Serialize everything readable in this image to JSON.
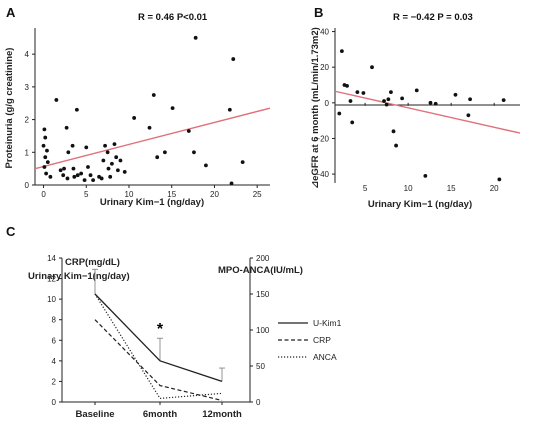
{
  "chart_data": [
    {
      "panel": "A",
      "type": "scatter",
      "stat": "R = 0.46  P<0.01",
      "xlabel": "Urinary Kim−1  (ng/day)",
      "ylabel": "Proteinuria (g/g creatinine)",
      "xlim": [
        -1,
        26.5
      ],
      "ylim": [
        0,
        4.8
      ],
      "xticks": [
        "0",
        "5",
        "10",
        "15",
        "20",
        "25"
      ],
      "yticks": [
        "0",
        "1",
        "2",
        "3",
        "4"
      ],
      "fit_line": {
        "x": [
          -1,
          26.5
        ],
        "y": [
          0.5,
          2.35
        ],
        "color": "#e0707a"
      },
      "points": [
        [
          0.1,
          1.7
        ],
        [
          0.2,
          1.45
        ],
        [
          0.0,
          1.2
        ],
        [
          0.4,
          1.05
        ],
        [
          0.2,
          0.85
        ],
        [
          0.5,
          0.7
        ],
        [
          0.1,
          0.55
        ],
        [
          0.3,
          0.35
        ],
        [
          0.8,
          0.25
        ],
        [
          1.5,
          2.6
        ],
        [
          2.0,
          0.45
        ],
        [
          2.4,
          0.5
        ],
        [
          2.7,
          1.75
        ],
        [
          2.9,
          1.0
        ],
        [
          2.3,
          0.3
        ],
        [
          2.8,
          0.2
        ],
        [
          3.4,
          1.2
        ],
        [
          3.5,
          0.5
        ],
        [
          3.6,
          0.25
        ],
        [
          3.9,
          2.3
        ],
        [
          4.0,
          0.3
        ],
        [
          4.4,
          0.35
        ],
        [
          4.8,
          0.15
        ],
        [
          5.0,
          1.15
        ],
        [
          5.2,
          0.55
        ],
        [
          5.5,
          0.3
        ],
        [
          5.8,
          0.15
        ],
        [
          6.5,
          0.25
        ],
        [
          6.8,
          0.2
        ],
        [
          7.0,
          0.75
        ],
        [
          7.2,
          1.2
        ],
        [
          7.5,
          1.0
        ],
        [
          7.6,
          0.5
        ],
        [
          7.8,
          0.25
        ],
        [
          8.0,
          0.65
        ],
        [
          8.3,
          1.25
        ],
        [
          8.5,
          0.85
        ],
        [
          8.7,
          0.45
        ],
        [
          9.0,
          0.75
        ],
        [
          9.5,
          0.4
        ],
        [
          10.6,
          2.05
        ],
        [
          12.4,
          1.75
        ],
        [
          12.9,
          2.75
        ],
        [
          13.3,
          0.85
        ],
        [
          14.2,
          1.0
        ],
        [
          15.1,
          2.35
        ],
        [
          17.0,
          1.65
        ],
        [
          17.6,
          1.0
        ],
        [
          17.8,
          4.5
        ],
        [
          19.0,
          0.6
        ],
        [
          21.8,
          2.3
        ],
        [
          22.2,
          3.85
        ],
        [
          23.3,
          0.7
        ],
        [
          22.0,
          0.05
        ]
      ]
    },
    {
      "panel": "B",
      "type": "scatter",
      "stat": "R = −0.42  P = 0.03",
      "xlabel": "Urinary Kim−1  (ng/day)",
      "ylabel": "⊿eGFR at 6 month  (mL/min/1.73m2)",
      "xlim": [
        1.5,
        23
      ],
      "ylim": [
        -45,
        42
      ],
      "xticks": [
        "5",
        "10",
        "15",
        "20"
      ],
      "yticks": [
        "40",
        "20",
        "0",
        "−20",
        "−40"
      ],
      "fit_line": {
        "x": [
          1.5,
          23
        ],
        "y": [
          6.5,
          -17
        ],
        "color": "#e0707a"
      },
      "points": [
        [
          2.3,
          29
        ],
        [
          2.6,
          10
        ],
        [
          2.9,
          9.5
        ],
        [
          3.3,
          1
        ],
        [
          3.5,
          -11
        ],
        [
          4.1,
          6
        ],
        [
          4.8,
          5.5
        ],
        [
          2.0,
          -6
        ],
        [
          5.8,
          20
        ],
        [
          7.2,
          1
        ],
        [
          7.5,
          -1
        ],
        [
          7.7,
          2
        ],
        [
          8.0,
          6
        ],
        [
          8.3,
          -16
        ],
        [
          8.6,
          -24
        ],
        [
          9.3,
          2.5
        ],
        [
          11.0,
          7
        ],
        [
          12.0,
          -41
        ],
        [
          12.6,
          0
        ],
        [
          13.2,
          -0.5
        ],
        [
          15.5,
          4.5
        ],
        [
          17.2,
          2
        ],
        [
          17.0,
          -7
        ],
        [
          20.6,
          -43
        ],
        [
          21.1,
          1.5
        ]
      ]
    },
    {
      "panel": "C",
      "type": "line",
      "ylabel_left": "CRP(mg/dL)",
      "ylabel_left2": "Urinary Kim−1(ng/day)",
      "ylabel_right": "MPO-ANCA(IU/mL)",
      "categories": [
        "Baseline",
        "6month",
        "12month"
      ],
      "ylim_left": [
        0,
        14
      ],
      "ylim_right": [
        0,
        200
      ],
      "yticks_left": [
        "0",
        "2",
        "4",
        "6",
        "8",
        "10",
        "12",
        "14"
      ],
      "yticks_right": [
        "0",
        "50",
        "100",
        "150",
        "200"
      ],
      "annotation": "*",
      "series": [
        {
          "name": "U-Kim1",
          "style": "solid",
          "axis": "left",
          "values": [
            10.5,
            4.0,
            2.0
          ],
          "error_upper": [
            12.9,
            6.2,
            3.3
          ]
        },
        {
          "name": "CRP",
          "style": "dashed",
          "axis": "left",
          "values": [
            8.0,
            1.6,
            0.15
          ]
        },
        {
          "name": "ANCA",
          "style": "dotted",
          "axis": "right",
          "values": [
            150,
            5,
            12
          ]
        }
      ]
    }
  ]
}
